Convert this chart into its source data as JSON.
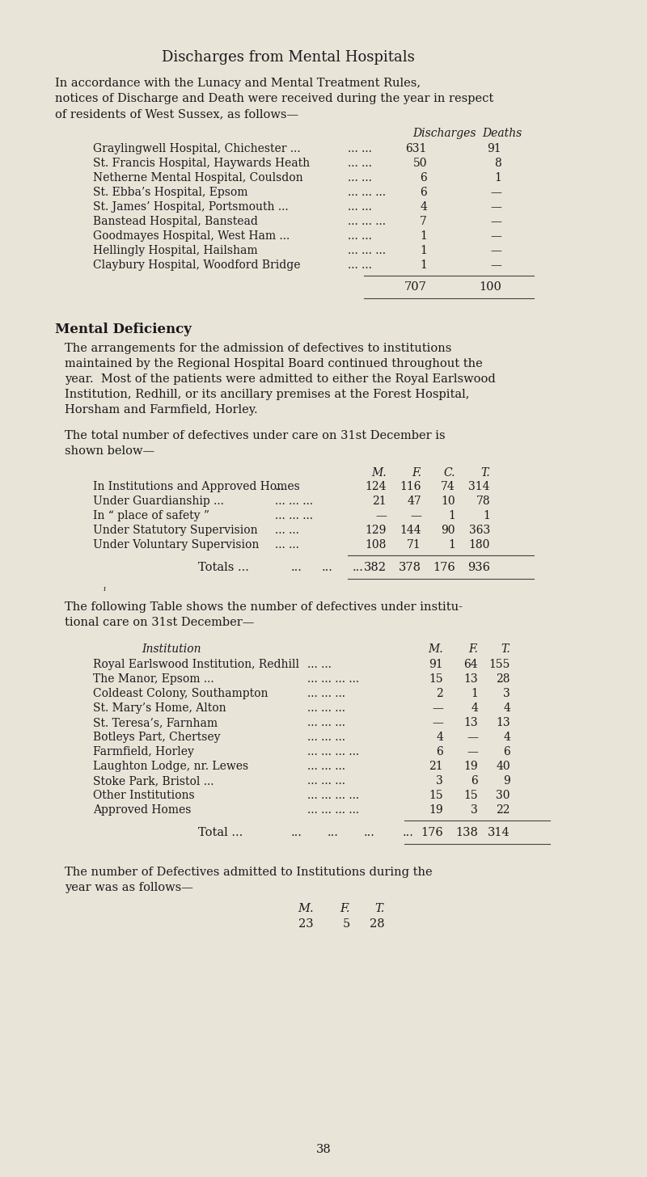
{
  "bg_color": "#e8e4d8",
  "text_color": "#1a1a1a",
  "page_title": "Discharges from Mental Hospitals",
  "section1_col_headers": [
    "Discharges",
    "Deaths"
  ],
  "section1_rows": [
    [
      "Graylingwell Hospital, Chichester ...",
      "... ...",
      "631",
      "91"
    ],
    [
      "St. Francis Hospital, Haywards Heath",
      "... ...",
      "50",
      "8"
    ],
    [
      "Netherne Mental Hospital, Coulsdon",
      "... ...",
      "6",
      "1"
    ],
    [
      "St. Ebba’s Hospital, Epsom",
      "... ... ...",
      "6",
      "—"
    ],
    [
      "St. James’ Hospital, Portsmouth ...",
      "... ...",
      "4",
      "—"
    ],
    [
      "Banstead Hospital, Banstead",
      "... ... ...",
      "7",
      "—"
    ],
    [
      "Goodmayes Hospital, West Ham ...",
      "... ...",
      "1",
      "—"
    ],
    [
      "Hellingly Hospital, Hailsham",
      "... ... ...",
      "1",
      "—"
    ],
    [
      "Claybury Hospital, Woodford Bridge",
      "... ...",
      "1",
      "—"
    ]
  ],
  "section1_total": [
    "707",
    "100"
  ],
  "mental_deficiency_title": "Mental Deficiency",
  "para1_lines": [
    "The arrangements for the admission of defectives to institutions",
    "maintained by the Regional Hospital Board continued throughout the",
    "year.  Most of the patients were admitted to either the Royal Earlswood",
    "Institution, Redhill, or its ancillary premises at the Forest Hospital,",
    "Horsham and Farmfield, Horley."
  ],
  "para2_lines": [
    "The total number of defectives under care on 31st December is",
    "shown below—"
  ],
  "table2_col_headers": [
    "M.",
    "F.",
    "C.",
    "T."
  ],
  "table2_rows": [
    [
      "In Institutions and Approved Homes",
      "...",
      "124",
      "116",
      "74",
      "314"
    ],
    [
      "Under Guardianship ...",
      "... ... ...",
      "21",
      "47",
      "10",
      "78"
    ],
    [
      "In “ place of safety ”",
      "... ... ...",
      "—",
      "—",
      "1",
      "1"
    ],
    [
      "Under Statutory Supervision",
      "... ...",
      "129",
      "144",
      "90",
      "363"
    ],
    [
      "Under Voluntary Supervision",
      "... ...",
      "108",
      "71",
      "1",
      "180"
    ]
  ],
  "table2_total": [
    "382",
    "378",
    "176",
    "936"
  ],
  "table3_intro_lines": [
    "The following Table shows the number of defectives under institu-",
    "tional care on 31st December—"
  ],
  "table3_col_headers": [
    "Institution",
    "M.",
    "F.",
    "T."
  ],
  "table3_rows": [
    [
      "Royal Earlswood Institution, Redhill",
      "... ...",
      "91",
      "64",
      "155"
    ],
    [
      "The Manor, Epsom ...",
      "... ... ... ...",
      "15",
      "13",
      "28"
    ],
    [
      "Coldeast Colony, Southampton",
      "... ... ...",
      "2",
      "1",
      "3"
    ],
    [
      "St. Mary’s Home, Alton",
      "... ... ...",
      "—",
      "4",
      "4"
    ],
    [
      "St. Teresa’s, Farnham",
      "... ... ...",
      "—",
      "13",
      "13"
    ],
    [
      "Botleys Part, Chertsey",
      "... ... ...",
      "4",
      "—",
      "4"
    ],
    [
      "Farmfield, Horley",
      "... ... ... ...",
      "6",
      "—",
      "6"
    ],
    [
      "Laughton Lodge, nr. Lewes",
      "... ... ...",
      "21",
      "19",
      "40"
    ],
    [
      "Stoke Park, Bristol ...",
      "... ... ...",
      "3",
      "6",
      "9"
    ],
    [
      "Other Institutions",
      "... ... ... ...",
      "15",
      "15",
      "30"
    ],
    [
      "Approved Homes",
      "... ... ... ...",
      "19",
      "3",
      "22"
    ]
  ],
  "table3_total": [
    "176",
    "138",
    "314"
  ],
  "final_para_lines": [
    "The number of Defectives admitted to Institutions during the",
    "year was as follows—"
  ],
  "final_table_headers": [
    "M.",
    "F.",
    "T."
  ],
  "final_table_values": [
    "23",
    "5",
    "28"
  ],
  "page_number": "38"
}
